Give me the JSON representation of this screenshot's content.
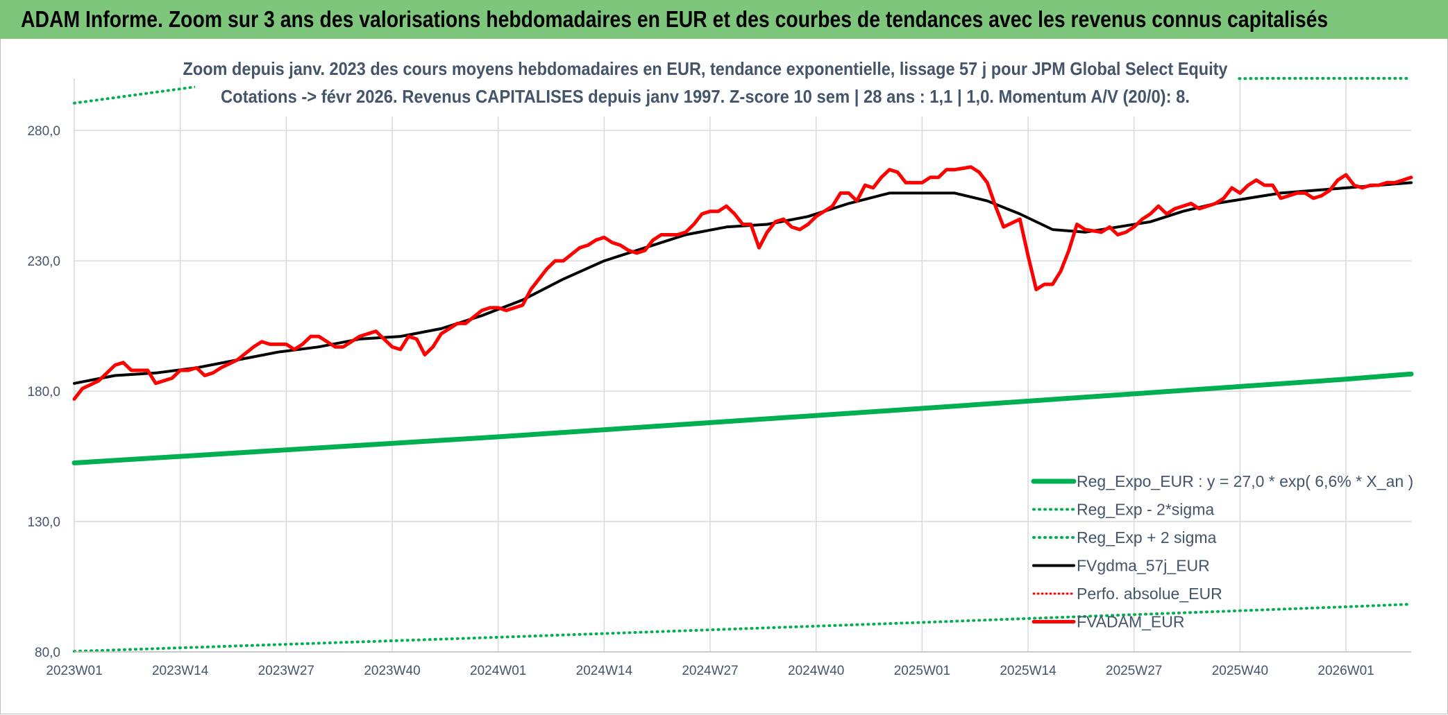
{
  "header": {
    "title": "ADAM Informe. Zoom sur 3 ans des valorisations hebdomadaires en EUR et des courbes de tendances avec les revenus connus capitalisés"
  },
  "chart_data": {
    "type": "line",
    "title": "Zoom depuis janv. 2023 des cours moyens hebdomadaires en EUR, tendance exponentielle, lissage 57 j pour JPM Global Select Equity",
    "subtitle": "Cotations -> févr 2026. Revenus CAPITALISES depuis janv 1997. Z-score 10 sem | 28 ans : 1,1 | 1,0. Momentum A/V (20/0): 8.",
    "xlabel": "",
    "ylabel": "",
    "ylim": [
      80,
      300
    ],
    "y_ticks": [
      "80,0",
      "130,0",
      "180,0",
      "230,0",
      "280,0"
    ],
    "y_tick_values": [
      80,
      130,
      180,
      230,
      280
    ],
    "x_ticks": [
      "2023W01",
      "2023W14",
      "2023W27",
      "2023W40",
      "2024W01",
      "2024W14",
      "2024W27",
      "2024W40",
      "2025W01",
      "2025W14",
      "2025W27",
      "2025W40",
      "2026W01"
    ],
    "x_tick_weeks": [
      0,
      13,
      26,
      39,
      52,
      65,
      78,
      91,
      104,
      117,
      130,
      143,
      156
    ],
    "x_range_weeks": [
      0,
      164
    ],
    "grid": true,
    "legend_position": "bottom-right",
    "colors": {
      "reg_expo": "#00b050",
      "sigma": "#00b050",
      "fvgdma": "#000000",
      "perfo": "#ff0000",
      "fvadam": "#ff0000"
    },
    "series": [
      {
        "name": "Reg_Expo_EUR : y = 27,0 * exp( 6,6% *  X_an )",
        "key": "reg_expo",
        "style": "thick",
        "values": [
          [
            0,
            152.5
          ],
          [
            52,
            162.5
          ],
          [
            104,
            173.4
          ],
          [
            156,
            184.6
          ],
          [
            164,
            186.6
          ]
        ]
      },
      {
        "name": "Reg_Exp - 2*sigma",
        "key": "sigma_minus",
        "style": "dotted",
        "values": [
          [
            0,
            80.2
          ],
          [
            52,
            85.6
          ],
          [
            104,
            91.3
          ],
          [
            156,
            97.3
          ],
          [
            164,
            98.3
          ]
        ]
      },
      {
        "name": "Reg_Exp + 2 sigma",
        "key": "sigma_plus",
        "style": "dotted",
        "values": [
          [
            0,
            290.5
          ],
          [
            15,
            296.8
          ],
          [
            146,
            300.0
          ],
          [
            164,
            300.0
          ]
        ]
      },
      {
        "name": "FVgdma_57j_EUR",
        "key": "fvgdma",
        "style": "solid",
        "values": [
          [
            0,
            183
          ],
          [
            5,
            186
          ],
          [
            10,
            187
          ],
          [
            15,
            189
          ],
          [
            20,
            192
          ],
          [
            25,
            195
          ],
          [
            30,
            197
          ],
          [
            35,
            200
          ],
          [
            40,
            201
          ],
          [
            45,
            204
          ],
          [
            50,
            209
          ],
          [
            55,
            215
          ],
          [
            60,
            223
          ],
          [
            65,
            230
          ],
          [
            70,
            235
          ],
          [
            75,
            240
          ],
          [
            80,
            243
          ],
          [
            85,
            244
          ],
          [
            90,
            247
          ],
          [
            95,
            252
          ],
          [
            100,
            256
          ],
          [
            104,
            256
          ],
          [
            108,
            256
          ],
          [
            112,
            253
          ],
          [
            116,
            248
          ],
          [
            120,
            242
          ],
          [
            124,
            241
          ],
          [
            128,
            243
          ],
          [
            132,
            245
          ],
          [
            136,
            249
          ],
          [
            140,
            252
          ],
          [
            144,
            254
          ],
          [
            148,
            256
          ],
          [
            152,
            257
          ],
          [
            156,
            258
          ],
          [
            160,
            259
          ],
          [
            164,
            260
          ]
        ]
      },
      {
        "name": "Perfo. absolue_EUR",
        "key": "perfo",
        "style": "dotted",
        "values": []
      },
      {
        "name": "FVADAM_EUR",
        "key": "fvadam",
        "style": "thick",
        "values": [
          [
            0,
            177
          ],
          [
            1,
            181
          ],
          [
            3,
            184
          ],
          [
            5,
            190
          ],
          [
            6,
            191
          ],
          [
            7,
            188
          ],
          [
            9,
            188
          ],
          [
            10,
            183
          ],
          [
            12,
            185
          ],
          [
            13,
            188
          ],
          [
            14,
            188
          ],
          [
            15,
            189
          ],
          [
            16,
            186
          ],
          [
            17,
            187
          ],
          [
            18,
            189
          ],
          [
            20,
            192
          ],
          [
            22,
            197
          ],
          [
            23,
            199
          ],
          [
            24,
            198
          ],
          [
            26,
            198
          ],
          [
            27,
            196
          ],
          [
            28,
            198
          ],
          [
            29,
            201
          ],
          [
            30,
            201
          ],
          [
            32,
            197
          ],
          [
            33,
            197
          ],
          [
            35,
            201
          ],
          [
            37,
            203
          ],
          [
            38,
            200
          ],
          [
            39,
            197
          ],
          [
            40,
            196
          ],
          [
            41,
            201
          ],
          [
            42,
            200
          ],
          [
            43,
            194
          ],
          [
            44,
            197
          ],
          [
            45,
            202
          ],
          [
            47,
            206
          ],
          [
            48,
            206
          ],
          [
            50,
            211
          ],
          [
            51,
            212
          ],
          [
            52,
            212
          ],
          [
            53,
            211
          ],
          [
            55,
            213
          ],
          [
            56,
            219
          ],
          [
            58,
            227
          ],
          [
            59,
            230
          ],
          [
            60,
            230
          ],
          [
            62,
            235
          ],
          [
            63,
            236
          ],
          [
            64,
            238
          ],
          [
            65,
            239
          ],
          [
            66,
            237
          ],
          [
            67,
            236
          ],
          [
            68,
            234
          ],
          [
            69,
            233
          ],
          [
            70,
            234
          ],
          [
            71,
            238
          ],
          [
            72,
            240
          ],
          [
            73,
            240
          ],
          [
            74,
            240
          ],
          [
            75,
            241
          ],
          [
            76,
            244
          ],
          [
            77,
            248
          ],
          [
            78,
            249
          ],
          [
            79,
            249
          ],
          [
            80,
            251
          ],
          [
            81,
            248
          ],
          [
            82,
            244
          ],
          [
            83,
            244
          ],
          [
            84,
            235
          ],
          [
            85,
            241
          ],
          [
            86,
            245
          ],
          [
            87,
            246
          ],
          [
            88,
            243
          ],
          [
            89,
            242
          ],
          [
            90,
            244
          ],
          [
            91,
            247
          ],
          [
            92,
            249
          ],
          [
            93,
            251
          ],
          [
            94,
            256
          ],
          [
            95,
            256
          ],
          [
            96,
            253
          ],
          [
            97,
            259
          ],
          [
            98,
            258
          ],
          [
            99,
            262
          ],
          [
            100,
            265
          ],
          [
            101,
            264
          ],
          [
            102,
            260
          ],
          [
            104,
            260
          ],
          [
            105,
            262
          ],
          [
            106,
            262
          ],
          [
            107,
            265
          ],
          [
            108,
            265
          ],
          [
            110,
            266
          ],
          [
            111,
            264
          ],
          [
            112,
            260
          ],
          [
            113,
            251
          ],
          [
            114,
            243
          ],
          [
            116,
            246
          ],
          [
            117,
            232
          ],
          [
            118,
            219
          ],
          [
            119,
            221
          ],
          [
            120,
            221
          ],
          [
            121,
            226
          ],
          [
            122,
            234
          ],
          [
            123,
            244
          ],
          [
            124,
            242
          ],
          [
            126,
            241
          ],
          [
            127,
            243
          ],
          [
            128,
            240
          ],
          [
            129,
            241
          ],
          [
            130,
            243
          ],
          [
            131,
            246
          ],
          [
            132,
            248
          ],
          [
            133,
            251
          ],
          [
            134,
            248
          ],
          [
            135,
            250
          ],
          [
            136,
            251
          ],
          [
            137,
            252
          ],
          [
            138,
            250
          ],
          [
            139,
            251
          ],
          [
            140,
            252
          ],
          [
            141,
            254
          ],
          [
            142,
            258
          ],
          [
            143,
            256
          ],
          [
            144,
            259
          ],
          [
            145,
            261
          ],
          [
            146,
            259
          ],
          [
            147,
            259
          ],
          [
            148,
            254
          ],
          [
            149,
            255
          ],
          [
            150,
            256
          ],
          [
            151,
            256
          ],
          [
            152,
            254
          ],
          [
            153,
            255
          ],
          [
            154,
            257
          ],
          [
            155,
            261
          ],
          [
            156,
            263
          ],
          [
            157,
            259
          ],
          [
            158,
            258
          ],
          [
            159,
            259
          ],
          [
            160,
            259
          ],
          [
            161,
            260
          ],
          [
            162,
            260
          ],
          [
            163,
            261
          ],
          [
            164,
            262
          ]
        ]
      }
    ]
  }
}
